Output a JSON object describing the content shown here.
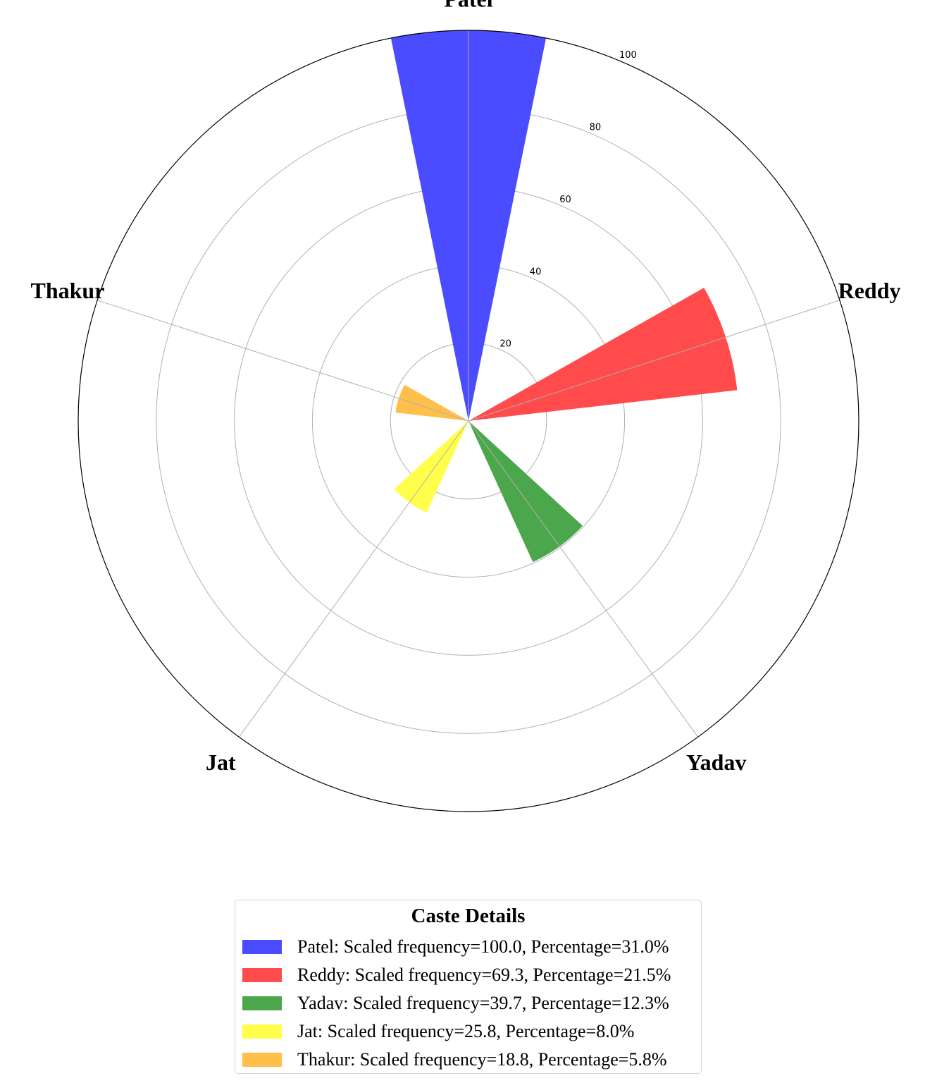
{
  "chart_data": {
    "type": "bar",
    "subtype": "polar",
    "categories": [
      "Patel",
      "Reddy",
      "Yadav",
      "Jat",
      "Thakur"
    ],
    "values": [
      100.0,
      69.3,
      39.7,
      25.8,
      18.8
    ],
    "percentages": [
      31.0,
      21.5,
      12.3,
      8.0,
      5.8
    ],
    "colors": [
      "#4b4bff",
      "#ff4b4b",
      "#4ca64c",
      "#ffff4b",
      "#ffbf4b"
    ],
    "rlim": [
      0,
      100
    ],
    "rticks": [
      20,
      40,
      60,
      80,
      100
    ],
    "grid": true,
    "legend": {
      "title": "Caste Details",
      "placement": "bottom-center",
      "entries": [
        "Patel: Scaled frequency=100.0, Percentage=31.0%",
        "Reddy: Scaled frequency=69.3, Percentage=21.5%",
        "Yadav: Scaled frequency=39.7, Percentage=12.3%",
        "Jat: Scaled frequency=25.8, Percentage=8.0%",
        "Thakur: Scaled frequency=18.8, Percentage=5.8%"
      ]
    }
  }
}
